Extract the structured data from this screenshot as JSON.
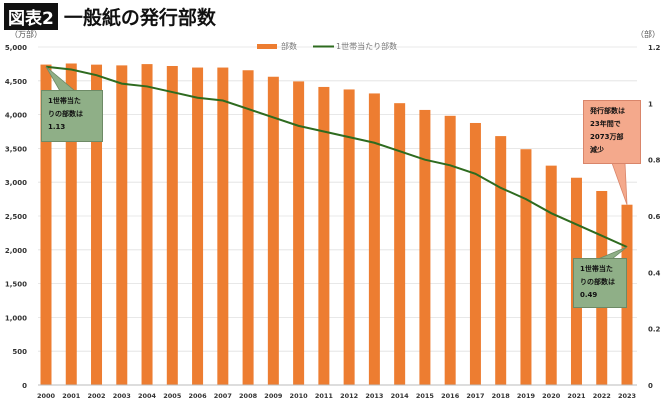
{
  "header": {
    "badge": "図表2",
    "title": "一般紙の発行部数"
  },
  "chart_data": {
    "type": "bar+line",
    "title": "一般紙の発行部数",
    "categories": [
      "2000",
      "2001",
      "2002",
      "2003",
      "2004",
      "2005",
      "2006",
      "2007",
      "2008",
      "2009",
      "2010",
      "2011",
      "2012",
      "2013",
      "2014",
      "2015",
      "2016",
      "2017",
      "2018",
      "2019",
      "2020",
      "2021",
      "2022",
      "2023"
    ],
    "series": [
      {
        "name": "部数",
        "type": "bar",
        "axis": "left",
        "color": "#ED7D31",
        "values": [
          4740,
          4756,
          4739,
          4728,
          4747,
          4719,
          4696,
          4696,
          4656,
          4560,
          4491,
          4409,
          4372,
          4313,
          4169,
          4069,
          3982,
          3876,
          3682,
          3488,
          3245,
          3066,
          2870,
          2667
        ]
      },
      {
        "name": "1世帯当たり部数",
        "type": "line",
        "axis": "right",
        "color": "#2E6B1F",
        "values": [
          1.13,
          1.12,
          1.1,
          1.07,
          1.06,
          1.04,
          1.02,
          1.01,
          0.98,
          0.95,
          0.92,
          0.9,
          0.88,
          0.86,
          0.83,
          0.8,
          0.78,
          0.75,
          0.7,
          0.66,
          0.61,
          0.57,
          0.53,
          0.49
        ]
      }
    ],
    "ylabel_left": "（万部）",
    "ylabel_right": "（部）",
    "ylim_left": [
      0,
      5000
    ],
    "yticks_left": [
      "0",
      "500",
      "1,000",
      "1,500",
      "2,000",
      "2,500",
      "3,000",
      "3,500",
      "4,000",
      "4,500",
      "5,000"
    ],
    "ylim_right": [
      0,
      1.2
    ],
    "yticks_right": [
      "0",
      "0.2",
      "0.4",
      "0.6",
      "0.8",
      "1",
      "1.2"
    ],
    "grid": true,
    "legend": "top-center",
    "annotations": [
      {
        "text": "1世帯当た\nりの部数は\n1.13",
        "color": "#8FAF87"
      },
      {
        "text": "発行部数は\n23年間で\n2073万部\n減少",
        "color": "#F4A98C"
      },
      {
        "text": "1世帯当た\nりの部数は\n0.49",
        "color": "#8FAF87"
      }
    ]
  }
}
